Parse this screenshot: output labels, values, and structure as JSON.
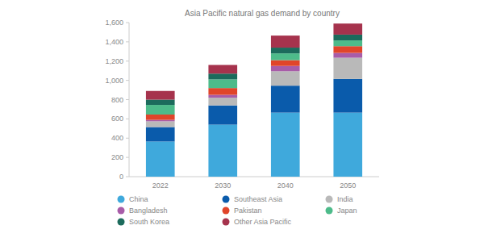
{
  "chart_data": {
    "type": "bar",
    "title": "Asia Pacific natural gas demand by country",
    "categories": [
      "2022",
      "2030",
      "2040",
      "2050"
    ],
    "stacked": true,
    "grid": false,
    "legend": "bottom",
    "ylim": [
      0,
      1600
    ],
    "yticks": [
      0,
      200,
      400,
      600,
      800,
      {
        "value": 1000,
        "label": "1,000"
      },
      {
        "value": 1200,
        "label": "1,200"
      },
      {
        "value": 1400,
        "label": "1,400"
      },
      {
        "value": 1600,
        "label": "1,600"
      }
    ],
    "series": [
      {
        "name": "China",
        "color": "#3fa9dc",
        "values": [
          365,
          540,
          665,
          665
        ]
      },
      {
        "name": "Southeast Asia",
        "color": "#0a5bab",
        "values": [
          150,
          200,
          280,
          350
        ]
      },
      {
        "name": "India",
        "color": "#b9b9b9",
        "values": [
          60,
          80,
          150,
          220
        ]
      },
      {
        "name": "Bangladesh",
        "color": "#a85ca8",
        "values": [
          15,
          30,
          55,
          50
        ]
      },
      {
        "name": "Pakistan",
        "color": "#e0452a",
        "values": [
          55,
          70,
          60,
          70
        ]
      },
      {
        "name": "Japan",
        "color": "#4dbb8a",
        "values": [
          100,
          90,
          70,
          60
        ]
      },
      {
        "name": "South Korea",
        "color": "#1c6b5c",
        "values": [
          55,
          60,
          60,
          60
        ]
      },
      {
        "name": "Other Asia Pacific",
        "color": "#a6334d",
        "values": [
          90,
          90,
          125,
          115
        ]
      }
    ]
  }
}
